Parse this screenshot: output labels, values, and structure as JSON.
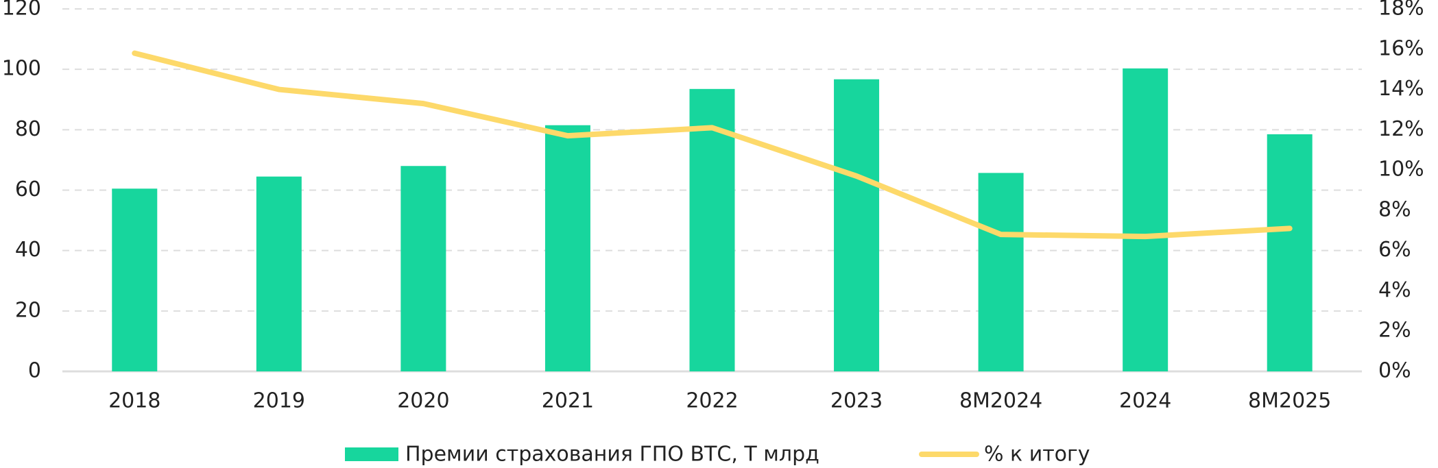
{
  "chart_data": {
    "type": "bar_line",
    "categories": [
      "2018",
      "2019",
      "2020",
      "2021",
      "2022",
      "2023",
      "8M2024",
      "2024",
      "8M2025"
    ],
    "series": [
      {
        "name": "Премии страхования ГПО ВТС, Т млрд",
        "type": "bar",
        "color": "#17d69d",
        "values": [
          60.5,
          64.5,
          68,
          81.5,
          93.5,
          96.7,
          65.7,
          100.3,
          78.5
        ]
      },
      {
        "name": "% к итогу",
        "type": "line",
        "axis": "y2",
        "color": "#fdd96a",
        "values": [
          15.8,
          14.0,
          13.3,
          11.7,
          12.1,
          9.7,
          6.8,
          6.7,
          7.1
        ]
      }
    ],
    "ylim": [
      0,
      120
    ],
    "yticks": [
      0,
      20,
      40,
      60,
      80,
      100,
      120
    ],
    "y2lim": [
      0,
      18
    ],
    "y2ticks": [
      {
        "value": 0,
        "label": "0%"
      },
      {
        "value": 2,
        "label": "2%"
      },
      {
        "value": 4,
        "label": "4%"
      },
      {
        "value": 6,
        "label": "6%"
      },
      {
        "value": 8,
        "label": "8%"
      },
      {
        "value": 10,
        "label": "10%"
      },
      {
        "value": 12,
        "label": "12%"
      },
      {
        "value": 14,
        "label": "14%"
      },
      {
        "value": 16,
        "label": "16%"
      },
      {
        "value": 18,
        "label": "18%"
      }
    ],
    "grid": true,
    "legend": "bottom"
  }
}
